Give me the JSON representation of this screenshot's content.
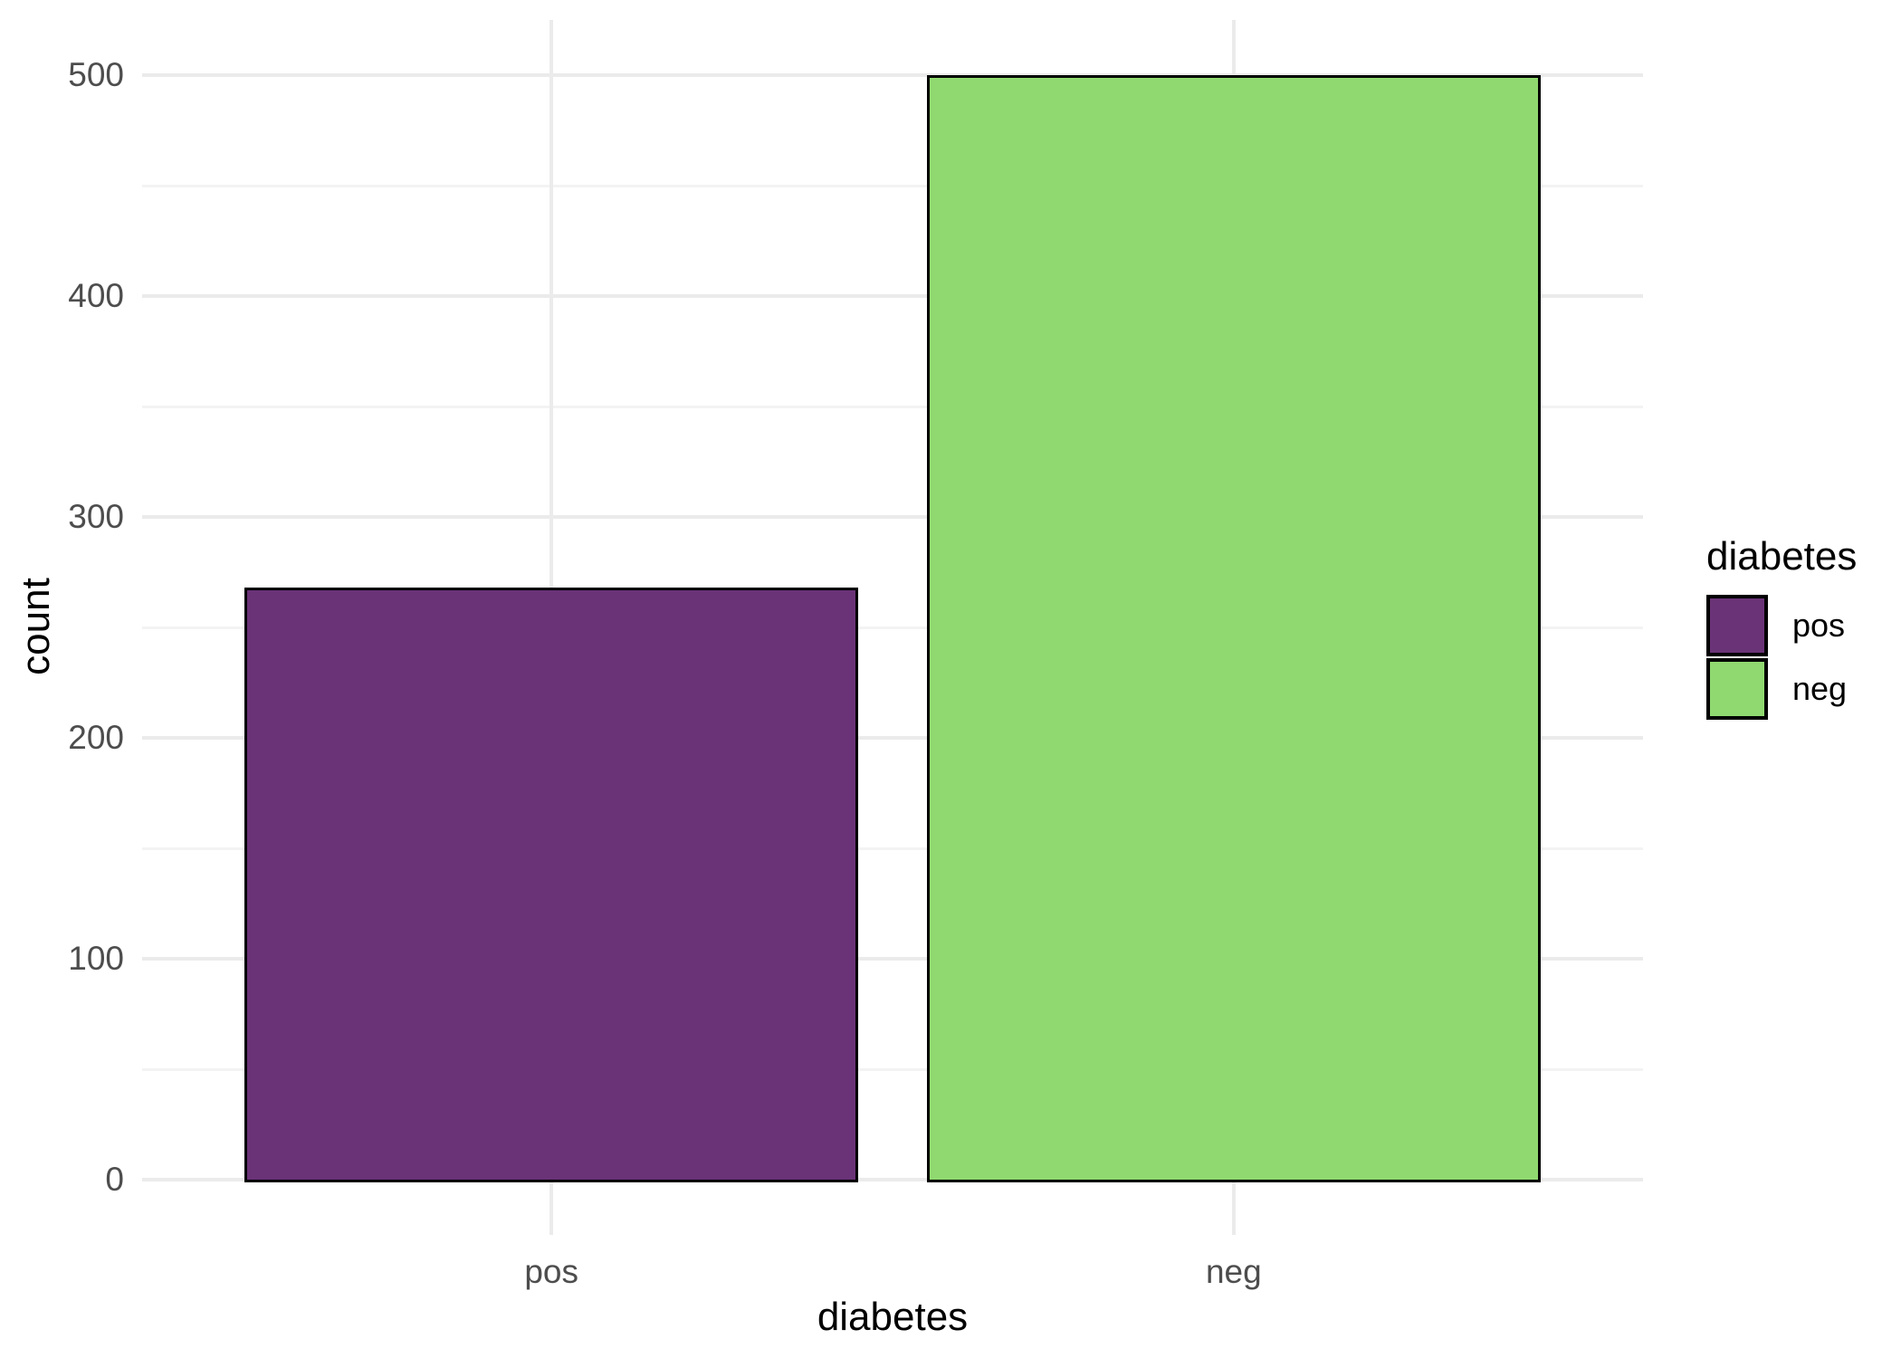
{
  "chart_data": {
    "type": "bar",
    "title": "",
    "categories": [
      "pos",
      "neg"
    ],
    "values": [
      268,
      500
    ],
    "xlabel": "diabetes",
    "ylabel": "count",
    "ylim": [
      0,
      500
    ],
    "yticks": [
      0,
      100,
      200,
      300,
      400,
      500
    ],
    "minor_yticks": [
      50,
      150,
      250,
      350,
      450
    ],
    "bar_width_fraction": 0.9,
    "series": [
      {
        "name": "pos",
        "value": 268,
        "fill": "#6a3377"
      },
      {
        "name": "neg",
        "value": 500,
        "fill": "#90d970"
      }
    ],
    "bar_border_color": "#000000",
    "grid": "on",
    "legend": {
      "title": "diabetes",
      "position": "right",
      "entries": [
        {
          "label": "pos",
          "color": "#6a3377"
        },
        {
          "label": "neg",
          "color": "#90d970"
        }
      ]
    },
    "style_colors": {
      "background": "#ffffff",
      "grid_major": "#ebebeb",
      "grid_minor": "#f3f3f3",
      "tick_label": "#4d4d4d",
      "axis_title": "#000000",
      "legend_text": "#000000"
    }
  }
}
